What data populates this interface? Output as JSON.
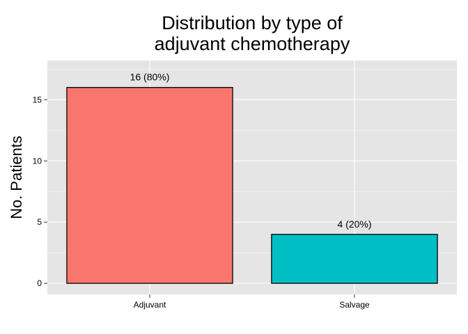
{
  "chart_data": {
    "type": "bar",
    "title_lines": [
      "Distribution by type of",
      "adjuvant chemotherapy"
    ],
    "xlabel": "",
    "ylabel": "No. Patients",
    "categories": [
      "Adjuvant",
      "Salvage"
    ],
    "values": [
      16,
      4
    ],
    "bar_labels": [
      "16 (80%)",
      "4 (20%)"
    ],
    "colors": [
      "#F8766D",
      "#00BFC4"
    ],
    "ylim": [
      -0.9,
      18.2
    ],
    "yticks": [
      0,
      5,
      10,
      15
    ],
    "ytick_labels": [
      "0",
      "5",
      "10",
      "15"
    ],
    "grid": true,
    "panel_background": "#E5E5E5",
    "grid_color": "#FFFFFF",
    "legend": "none"
  }
}
